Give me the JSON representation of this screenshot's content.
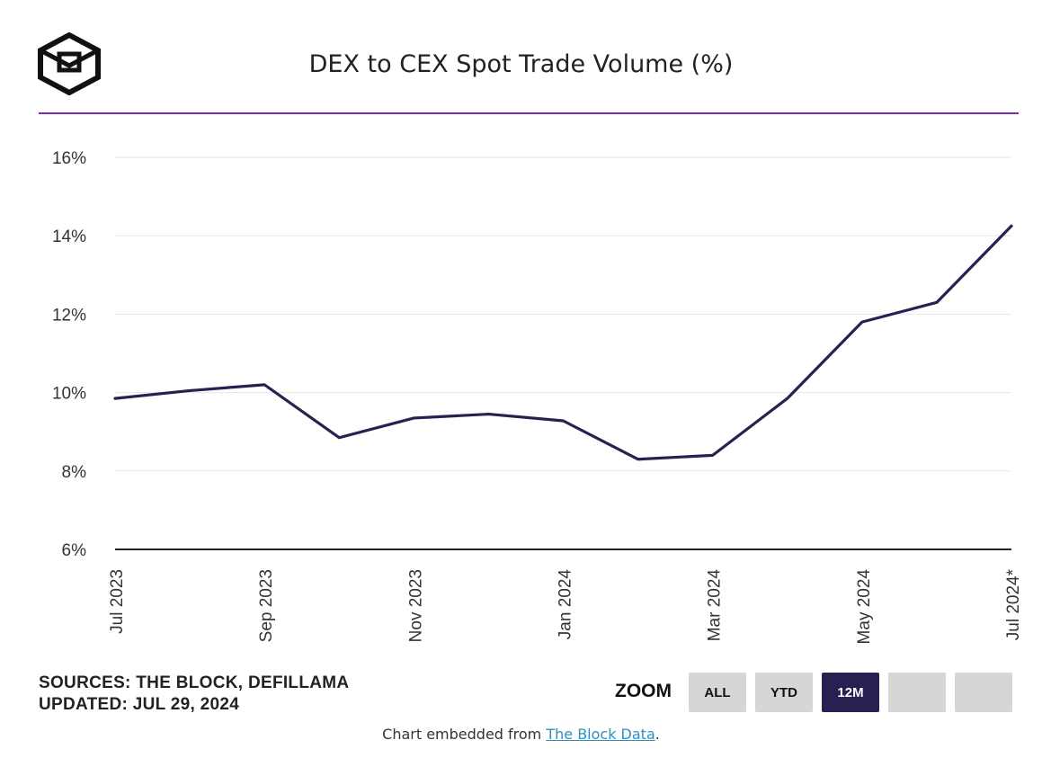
{
  "header": {
    "title": "DEX to CEX Spot Trade Volume (%)",
    "logo_icon": "the-block-cube-icon"
  },
  "colors": {
    "accent_divider": "#7a2da8",
    "line": "#272152",
    "zoom_active": "#272152",
    "zoom_inactive": "#d6d6d6",
    "link": "#2f8fbf"
  },
  "chart_data": {
    "type": "line",
    "title": "DEX to CEX Spot Trade Volume (%)",
    "x": [
      "2023-07",
      "2023-08",
      "2023-09",
      "2023-10",
      "2023-11",
      "2023-12",
      "2024-01",
      "2024-02",
      "2024-03",
      "2024-04",
      "2024-05",
      "2024-06",
      "2024-07"
    ],
    "series": [
      {
        "values": [
          9.85,
          10.05,
          10.2,
          8.85,
          9.35,
          9.45,
          9.28,
          8.3,
          8.4,
          9.85,
          11.8,
          12.3,
          14.25
        ]
      }
    ],
    "x_tick_labels": [
      "Jul 2023",
      "Sep 2023",
      "Nov 2023",
      "Jan 2024",
      "Mar 2024",
      "May 2024",
      "Jul 2024*"
    ],
    "x_tick_positions": [
      "2023-07",
      "2023-09",
      "2023-11",
      "2024-01",
      "2024-03",
      "2024-05",
      "2024-07"
    ],
    "y_ticks": [
      6,
      8,
      10,
      12,
      14,
      16
    ],
    "y_tick_labels": [
      "6%",
      "8%",
      "10%",
      "12%",
      "14%",
      "16%"
    ],
    "ylim": [
      6,
      16
    ],
    "grid": true,
    "legend": "none"
  },
  "footer": {
    "sources": "SOURCES: THE BLOCK, DEFILLAMA",
    "updated": "UPDATED: JUL 29, 2024",
    "zoom_label": "ZOOM",
    "zoom_buttons": [
      "ALL",
      "YTD",
      "12M",
      "",
      ""
    ],
    "zoom_active": "12M",
    "embed_prefix": "Chart embedded from ",
    "embed_link": "The Block Data",
    "embed_suffix": "."
  }
}
